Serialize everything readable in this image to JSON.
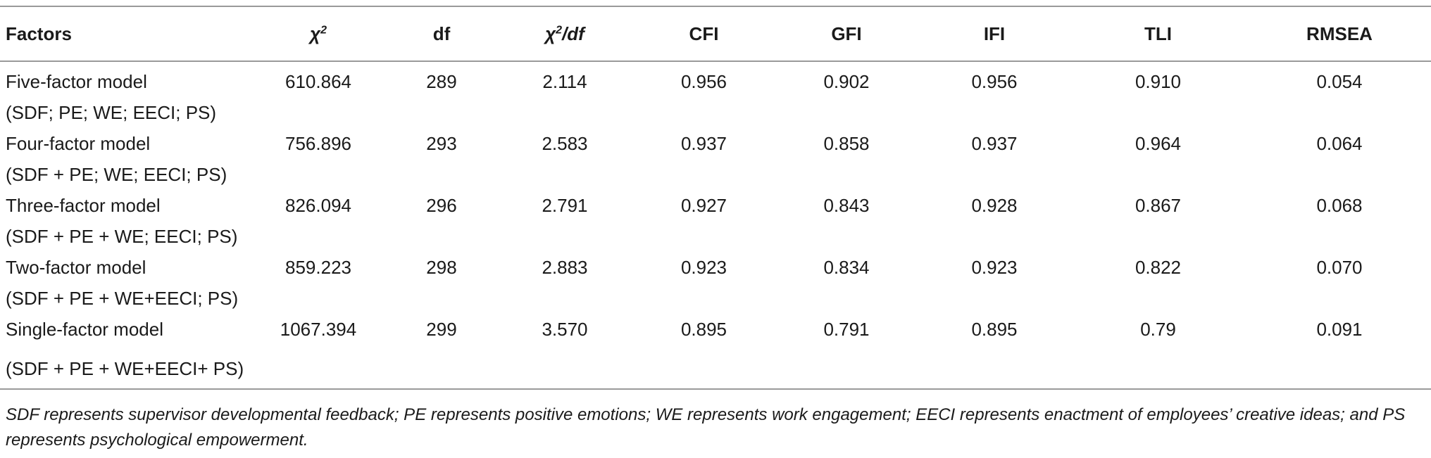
{
  "table": {
    "headers": {
      "factors": "Factors",
      "chi2_symbol": "χ",
      "chi2_sup": "2",
      "df": "df",
      "chi2df_symbol": "χ",
      "chi2df_sup": "2",
      "chi2df_suffix": "/df",
      "cfi": "CFI",
      "gfi": "GFI",
      "ifi": "IFI",
      "tli": "TLI",
      "rmsea": "RMSEA"
    },
    "rows": [
      {
        "model": "Five-factor model",
        "composition": "(SDF; PE; WE; EECI; PS)",
        "chi2": "610.864",
        "df": "289",
        "chi2df": "2.114",
        "cfi": "0.956",
        "gfi": "0.902",
        "ifi": "0.956",
        "tli": "0.910",
        "rmsea": "0.054"
      },
      {
        "model": "Four-factor model",
        "composition": "(SDF + PE; WE; EECI; PS)",
        "chi2": "756.896",
        "df": "293",
        "chi2df": "2.583",
        "cfi": "0.937",
        "gfi": "0.858",
        "ifi": "0.937",
        "tli": "0.964",
        "rmsea": "0.064"
      },
      {
        "model": "Three-factor model",
        "composition": "(SDF + PE + WE; EECI; PS)",
        "chi2": "826.094",
        "df": "296",
        "chi2df": "2.791",
        "cfi": "0.927",
        "gfi": "0.843",
        "ifi": "0.928",
        "tli": "0.867",
        "rmsea": "0.068"
      },
      {
        "model": "Two-factor model",
        "composition": "(SDF + PE + WE+EECI; PS)",
        "chi2": "859.223",
        "df": "298",
        "chi2df": "2.883",
        "cfi": "0.923",
        "gfi": "0.834",
        "ifi": "0.923",
        "tli": "0.822",
        "rmsea": "0.070"
      },
      {
        "model": "Single-factor model",
        "composition": "(SDF + PE + WE+EECI+ PS)",
        "chi2": "1067.394",
        "df": "299",
        "chi2df": "3.570",
        "cfi": "0.895",
        "gfi": "0.791",
        "ifi": "0.895",
        "tli": "0.79",
        "rmsea": "0.091"
      }
    ]
  },
  "footnote": "SDF represents supervisor developmental feedback; PE represents positive emotions; WE represents work engagement; EECI represents enactment of employees’ creative ideas; and PS represents psychological empowerment."
}
